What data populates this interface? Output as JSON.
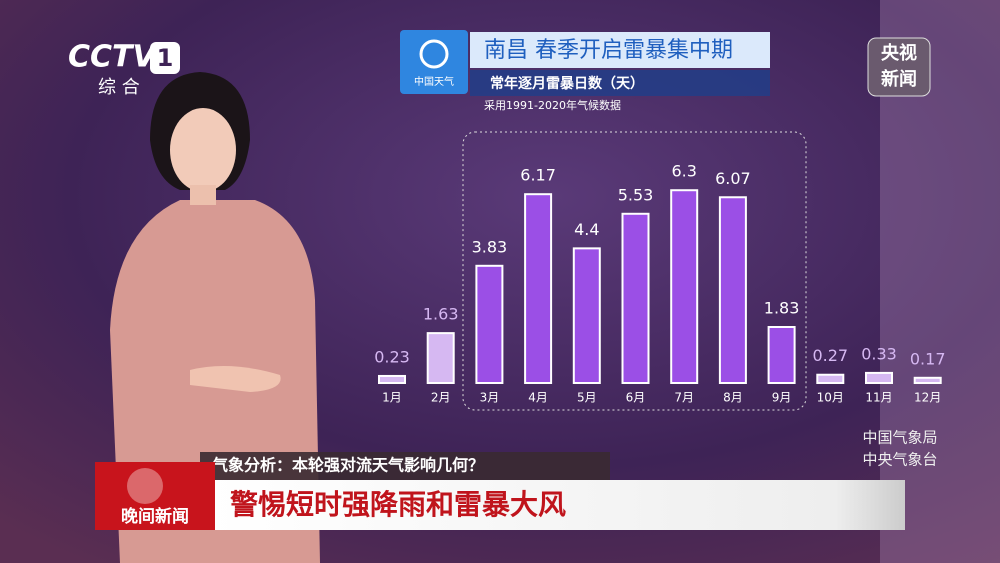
{
  "broadcast": {
    "channel_logo": "CCTV",
    "channel_number": "1",
    "channel_name": "综 合",
    "weather_logo": "中国天气",
    "news_logo_top": "央视",
    "news_logo_bottom": "新闻",
    "source_1": "中国气象局",
    "source_2": "中央气象台",
    "topic": "气象分析：本轮强对流天气影响几何？",
    "program": "晚间新闻",
    "headline": "警惕短时强降雨和雷暴大风"
  },
  "chart_data": {
    "type": "bar",
    "title": "南昌 春季开启雷暴集中期",
    "subtitle": "常年逐月雷暴日数（天）",
    "note": "采用1991-2020年气候数据",
    "categories": [
      "1月",
      "2月",
      "3月",
      "4月",
      "5月",
      "6月",
      "7月",
      "8月",
      "9月",
      "10月",
      "11月",
      "12月"
    ],
    "values": [
      0.23,
      1.63,
      3.83,
      6.17,
      4.4,
      5.53,
      6.3,
      6.07,
      1.83,
      0.27,
      0.33,
      0.17
    ],
    "colors": [
      "#d6b8f2",
      "#d6b8f2",
      "#9b4fe6",
      "#9b4fe6",
      "#9b4fe6",
      "#9b4fe6",
      "#9b4fe6",
      "#9b4fe6",
      "#9b4fe6",
      "#d6b8f2",
      "#d6b8f2",
      "#d6b8f2"
    ]
  }
}
